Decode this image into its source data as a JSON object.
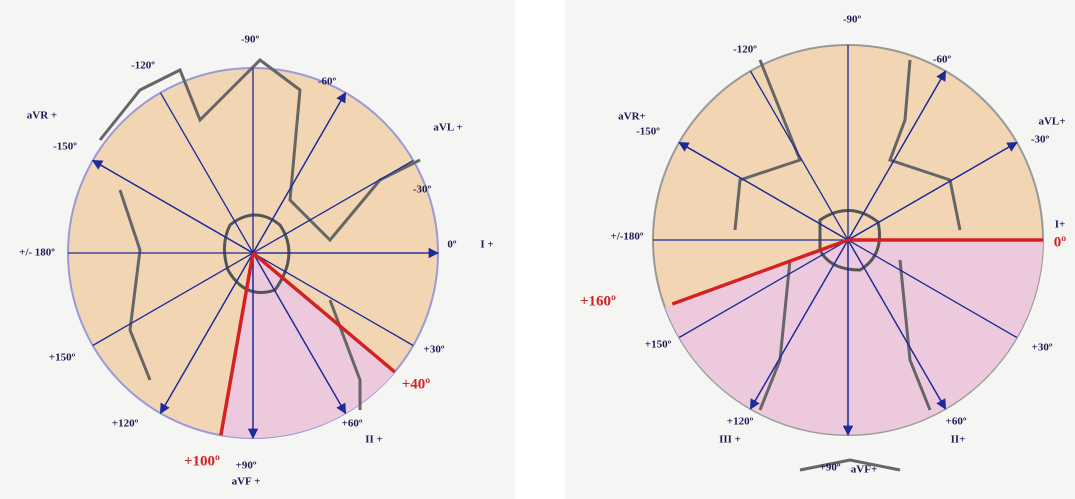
{
  "panels": [
    {
      "labels": [
        "-90º",
        "-120º",
        "-60º",
        "aVR +",
        "aVL +",
        "-150º",
        "-30º",
        "+/- 180º",
        "0º",
        "I +",
        "+150º",
        "+30º",
        "+120º",
        "+60º",
        "II +",
        "+90º",
        "aVF +",
        "+40º",
        "+100º"
      ]
    },
    {
      "labels": [
        "-90º",
        "-120º",
        "-60º",
        "aVR+",
        "-150º",
        "aVL+",
        "-30º",
        "I+",
        "+/-180º",
        "0º",
        "+160º",
        "+150º",
        "+30º",
        "+120º",
        "III +",
        "+60º",
        "II+",
        "+90º",
        "aVF+"
      ]
    }
  ]
}
